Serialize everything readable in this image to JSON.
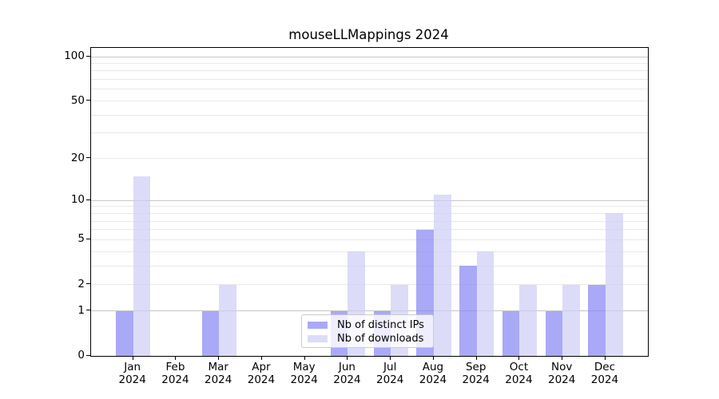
{
  "title": "mouseLLMappings 2024",
  "legend": {
    "items": [
      {
        "label": "Nb of distinct IPs",
        "color": "#a9a9f7"
      },
      {
        "label": "Nb of downloads",
        "color": "#dcdcf8"
      }
    ]
  },
  "chart_data": {
    "type": "bar",
    "title": "mouseLLMappings 2024",
    "months": [
      "Jan",
      "Feb",
      "Mar",
      "Apr",
      "May",
      "Jun",
      "Jul",
      "Aug",
      "Sep",
      "Oct",
      "Nov",
      "Dec"
    ],
    "year": "2024",
    "series": [
      {
        "name": "Nb of distinct IPs",
        "color": "#a9a9f7",
        "values": [
          1,
          0,
          1,
          0,
          0,
          1,
          1,
          6,
          3,
          1,
          1,
          2
        ]
      },
      {
        "name": "Nb of downloads",
        "color": "#dcdcf8",
        "values": [
          15,
          0,
          2,
          0,
          0,
          4,
          2,
          11,
          4,
          2,
          2,
          8
        ]
      }
    ],
    "yscale": "log10(1+x)",
    "ylim": [
      0,
      101
    ],
    "yticks": [
      0,
      1,
      2,
      5,
      10,
      20,
      50,
      100
    ],
    "major_gridlines": [
      1,
      10,
      100
    ],
    "minor_gridlines": [
      2,
      3,
      4,
      5,
      6,
      7,
      8,
      9,
      20,
      30,
      40,
      50,
      60,
      70,
      80,
      90
    ],
    "grid": true,
    "legend_position": "lower center",
    "axis_color": "#000000",
    "major_grid_color": "#c6c6c6",
    "minor_grid_color": "#e9e9e9",
    "background_color": "#ffffff"
  }
}
